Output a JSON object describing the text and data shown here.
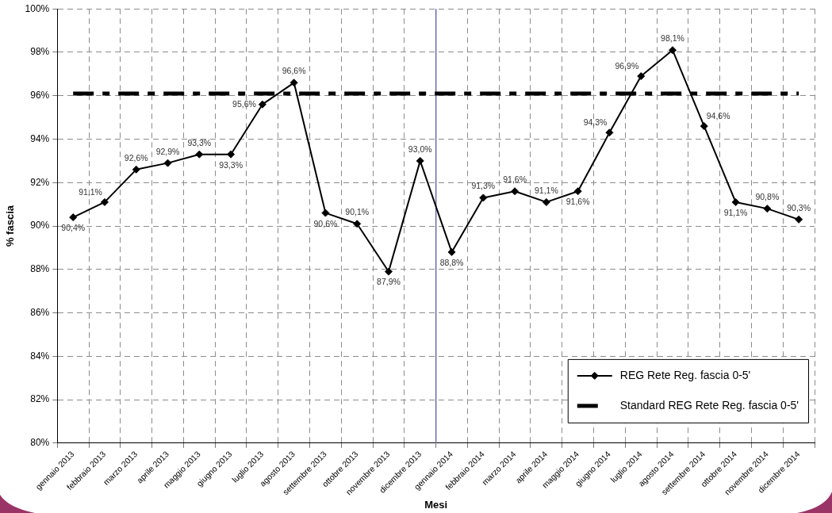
{
  "chart_data": {
    "type": "line",
    "xlabel": "Mesi",
    "ylabel": "% fascia",
    "categories": [
      "gennaio 2013",
      "febbraio 2013",
      "marzo 2013",
      "aprile 2013",
      "maggio 2013",
      "giugno 2013",
      "luglio 2013",
      "agosto 2013",
      "settembre 2013",
      "ottobre 2013",
      "novembre 2013",
      "dicembre 2013",
      "gennaio 2014",
      "febbraio 2014",
      "marzo 2014",
      "aprile 2014",
      "maggio 2014",
      "giugno 2014",
      "luglio 2014",
      "agosto 2014",
      "settembre 2014",
      "ottobre 2014",
      "novembre 2014",
      "dicembre 2014"
    ],
    "series": [
      {
        "name": "REG Rete Reg. fascia 0-5'",
        "color": "#000000",
        "values": [
          90.4,
          91.1,
          92.6,
          92.9,
          93.3,
          93.3,
          95.6,
          96.6,
          90.6,
          90.1,
          87.9,
          93.0,
          88.8,
          91.3,
          91.6,
          91.1,
          91.6,
          94.3,
          96.9,
          98.1,
          94.6,
          91.1,
          90.8,
          90.3
        ],
        "value_labels": [
          "90,4%",
          "91,1%",
          "92,6%",
          "92,9%",
          "93,3%",
          "93,3%",
          "95,6%",
          "96,6%",
          "90,6%",
          "90,1%",
          "87,9%",
          "93,0%",
          "88,8%",
          "91,3%",
          "91,6%",
          "91,1%",
          "91,6%",
          "94,3%",
          "96,9%",
          "98,1%",
          "94,6%",
          "91,1%",
          "90,8%",
          "90,3%"
        ]
      },
      {
        "name": "Standard REG Rete Reg. fascia 0-5'",
        "color": "#000000",
        "marker": "none",
        "line_style": "dashed",
        "values": [
          96.1,
          96.1,
          96.1,
          96.1,
          96.1,
          96.1,
          96.1,
          96.1,
          96.1,
          96.1,
          96.1,
          96.1,
          96.1,
          96.1,
          96.1,
          96.1,
          96.1,
          96.1,
          96.1,
          96.1,
          96.1,
          96.1,
          96.1,
          96.1
        ]
      }
    ],
    "ylim": [
      80,
      100
    ],
    "yticks": [
      {
        "value": 80,
        "label": "80%"
      },
      {
        "value": 82,
        "label": "82%"
      },
      {
        "value": 84,
        "label": "84%"
      },
      {
        "value": 86,
        "label": "86%"
      },
      {
        "value": 88,
        "label": "88%"
      },
      {
        "value": 90,
        "label": "90%"
      },
      {
        "value": 92,
        "label": "92%"
      },
      {
        "value": 94,
        "label": "94%"
      },
      {
        "value": 96,
        "label": "96%"
      },
      {
        "value": 98,
        "label": "98%"
      },
      {
        "value": 100,
        "label": "100%"
      }
    ],
    "grid": true,
    "legend": "bottom right",
    "marker": "diamond",
    "ref_lines": [
      {
        "axis": "x",
        "value": "gennaio 2014",
        "color": "#6a6aad"
      }
    ]
  }
}
